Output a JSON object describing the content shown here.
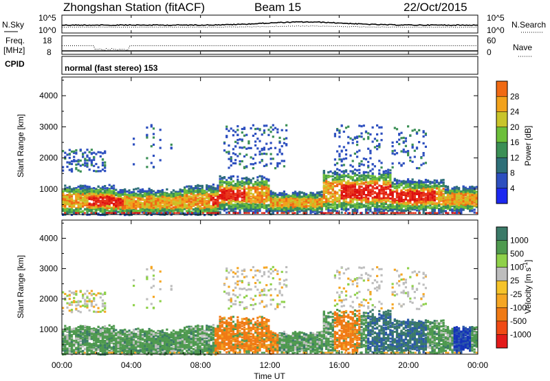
{
  "header": {
    "station": "Zhongshan Station (fitACF)",
    "beam": "Beam 15",
    "date": "22/Oct/2015"
  },
  "panels": {
    "nsky": {
      "label": "N.Sky",
      "right_label": "N.Search",
      "ticks_left": [
        "10^5",
        "10^0"
      ],
      "ticks_right": [
        "10^5",
        "10^0"
      ]
    },
    "freq": {
      "label_line1": "Freq.",
      "label_line2": "[MHz]",
      "ticks_left": [
        "18",
        "8"
      ],
      "ticks_right": [
        "60",
        "0"
      ],
      "right_label": "Nave"
    },
    "cpid": {
      "label": "CPID",
      "value": "normal (fast stereo) 153"
    }
  },
  "chart_data": [
    {
      "type": "heatmap",
      "title": "",
      "xlabel": "",
      "ylabel": "Slant Range [km]",
      "x_ticks": [
        "00:00",
        "04:00",
        "08:00",
        "12:00",
        "16:00",
        "20:00",
        "00:00"
      ],
      "y_ticks": [
        1000,
        2000,
        3000,
        4000
      ],
      "ylim": [
        180,
        4600
      ],
      "colorbar": {
        "label": "Power [dB]",
        "ticks": [
          4,
          8,
          12,
          16,
          20,
          24,
          28
        ],
        "range": [
          0,
          30
        ],
        "colors": [
          "#1c28f0",
          "#2d4fbf",
          "#2e6f78",
          "#3b8f55",
          "#6cbf3a",
          "#c9c42a",
          "#f2a21c",
          "#f06a14",
          "#e8351a",
          "#dd1010"
        ]
      }
    },
    {
      "type": "heatmap",
      "title": "",
      "xlabel": "Time UT",
      "ylabel": "Slant Range [km]",
      "x_ticks": [
        "00:00",
        "04:00",
        "08:00",
        "12:00",
        "16:00",
        "20:00",
        "00:00"
      ],
      "y_ticks": [
        1000,
        2000,
        3000,
        4000
      ],
      "ylim": [
        180,
        4600
      ],
      "colorbar": {
        "label": "Velocity [m s^-1]",
        "ticks": [
          "1000",
          "500",
          "100",
          "25",
          "-25",
          "-100",
          "-500",
          "-1000"
        ],
        "colors": [
          "#1533b8",
          "#2d5aa8",
          "#3b7a68",
          "#4f9a4f",
          "#8fd14a",
          "#bdbdbd",
          "#f5c32a",
          "#f5a623",
          "#f07a14",
          "#f04a14",
          "#e31a1a"
        ]
      }
    }
  ]
}
